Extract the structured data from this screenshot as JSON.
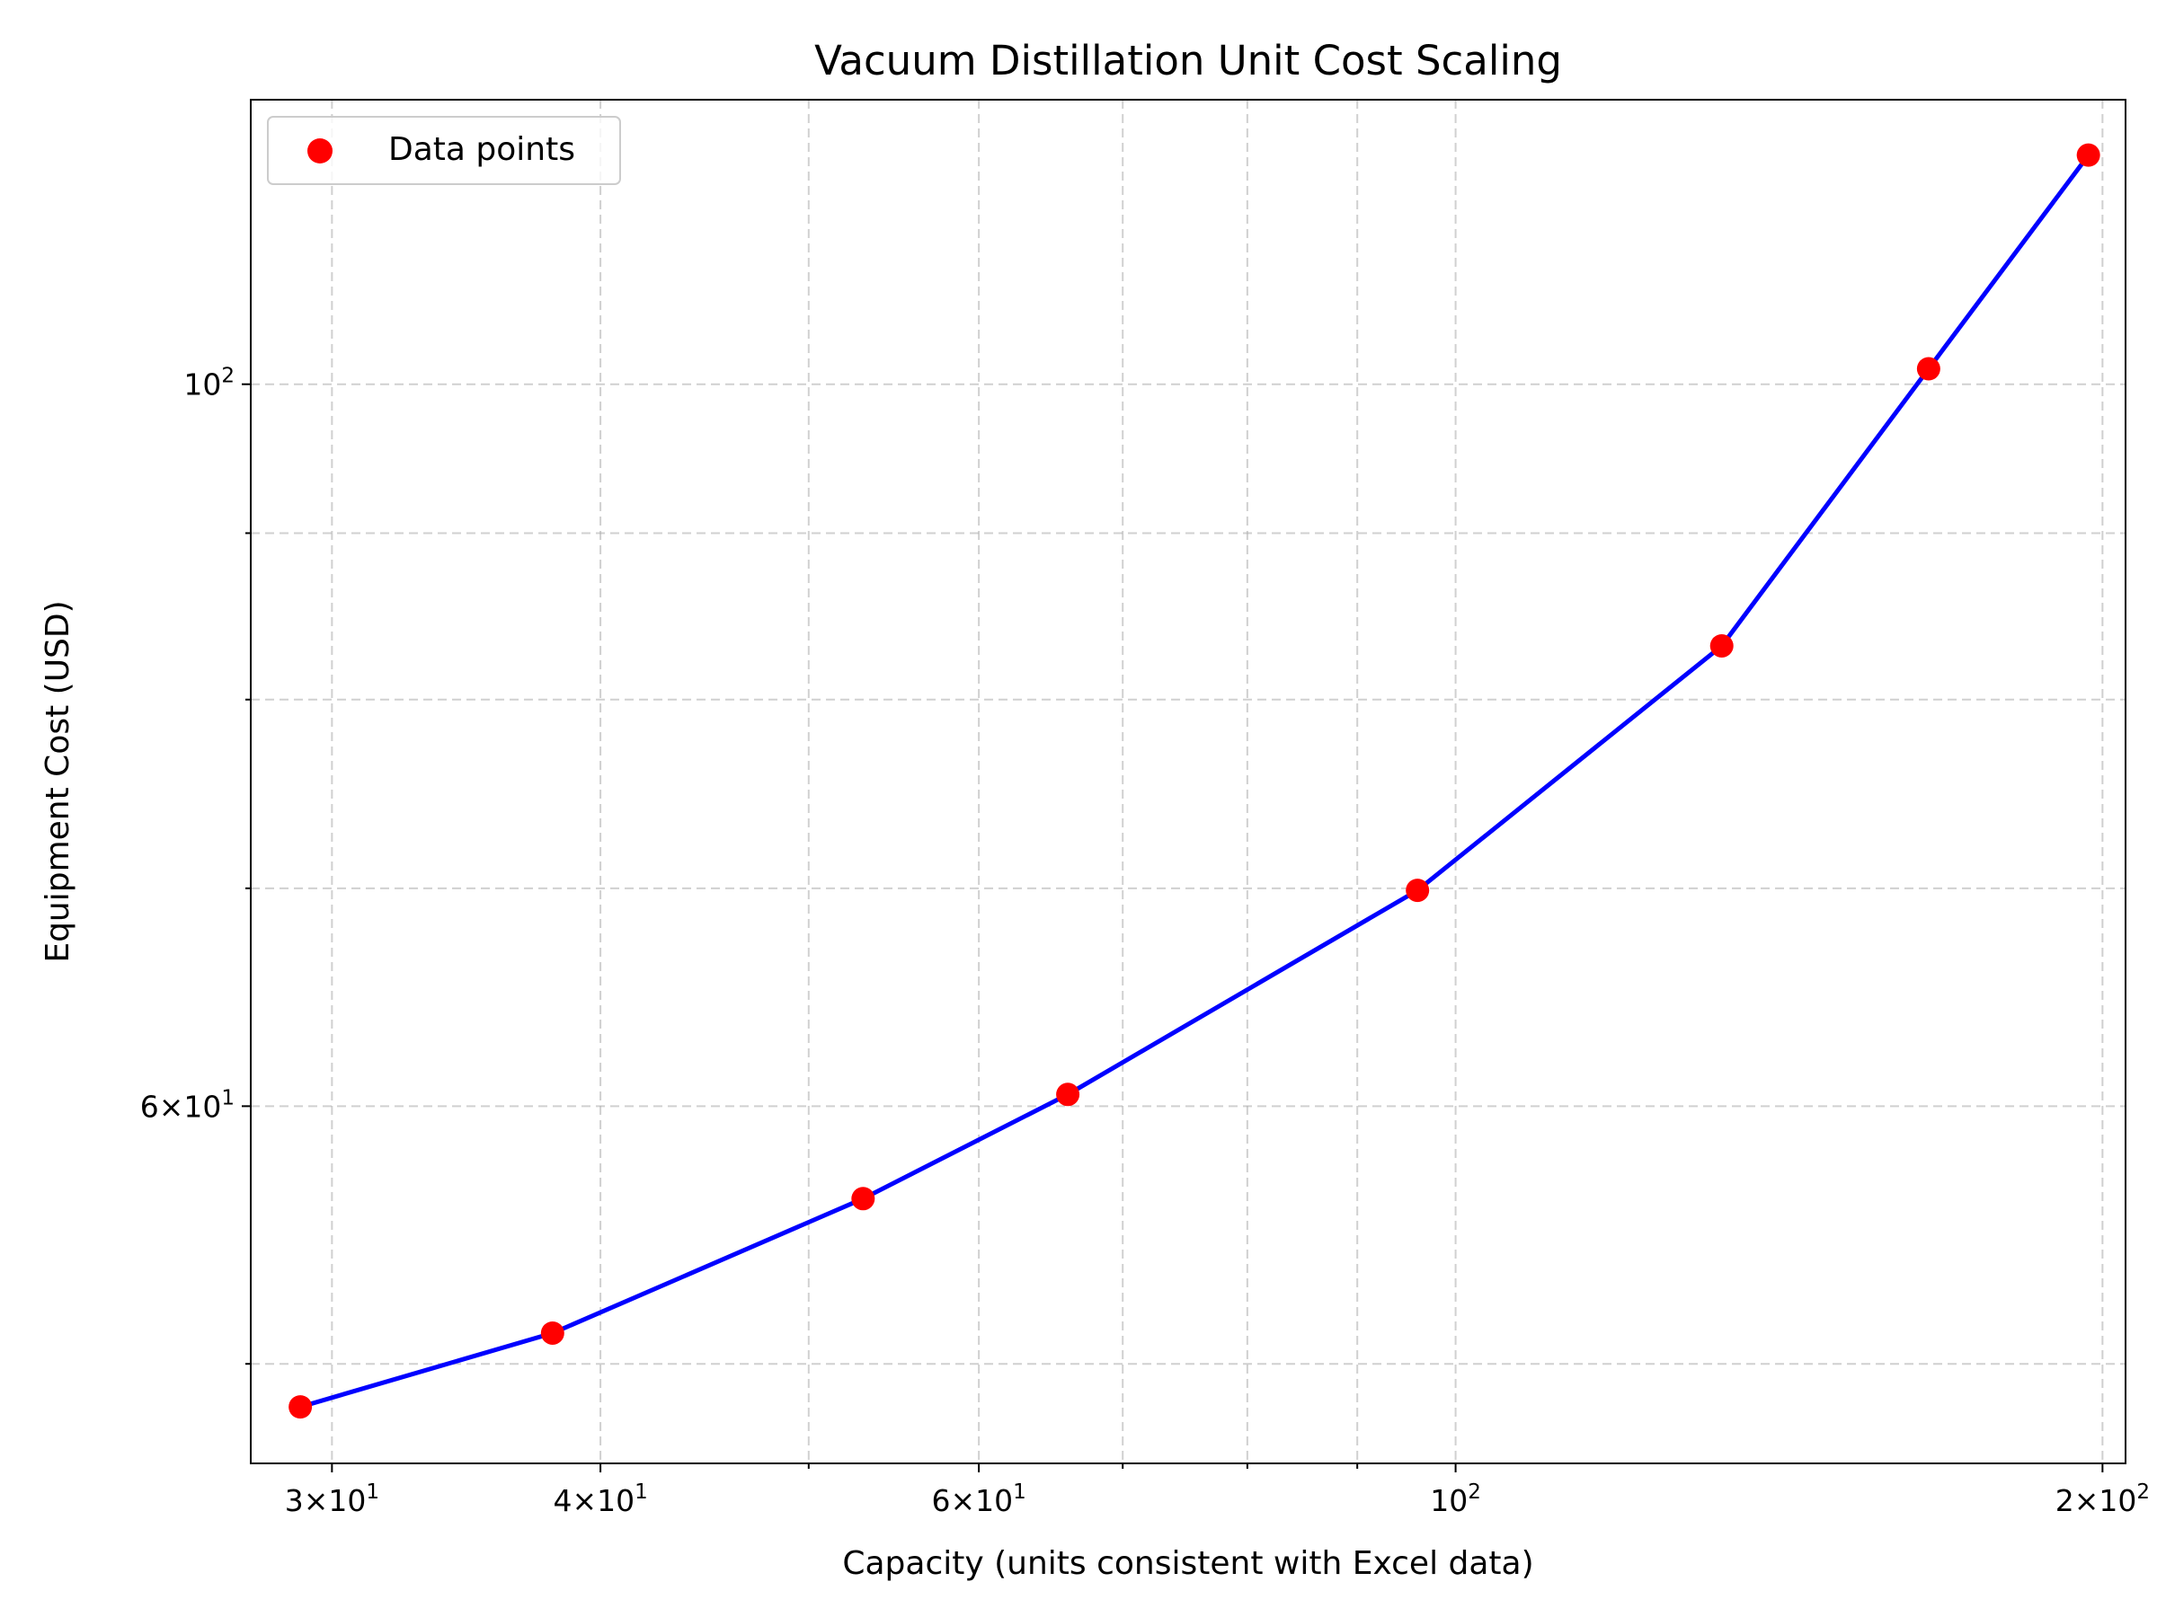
{
  "chart_data": {
    "type": "scatter",
    "title": "Vacuum Distillation Unit Cost Scaling",
    "xlabel": "Capacity (units consistent with Excel data)",
    "ylabel": "Equipment Cost (USD)",
    "xscale": "log",
    "yscale": "log",
    "xlim": [
      27.5,
      205
    ],
    "ylim": [
      46.6,
      122.3
    ],
    "grid": true,
    "legend_position": "top-left",
    "x_ticks": [
      {
        "value": 30,
        "mantissa": "3",
        "exp": "1"
      },
      {
        "value": 40,
        "mantissa": "4",
        "exp": "1"
      },
      {
        "value": 60,
        "mantissa": "6",
        "exp": "1"
      },
      {
        "value": 100,
        "mantissa": "",
        "exp": "2"
      },
      {
        "value": 200,
        "mantissa": "2",
        "exp": "2"
      }
    ],
    "x_minor_ticks": [
      50,
      70,
      80,
      90
    ],
    "y_ticks": [
      {
        "value": 60,
        "mantissa": "6",
        "exp": "1"
      },
      {
        "value": 100,
        "mantissa": "",
        "exp": "2"
      }
    ],
    "y_minor_ticks": [
      50,
      70,
      80,
      90
    ],
    "series": [
      {
        "name": "Data points",
        "kind": "scatter",
        "color": "#ff0000",
        "x": [
          29,
          38,
          53,
          66,
          96,
          133,
          166,
          197
        ],
        "y": [
          48.5,
          51.1,
          56.2,
          60.5,
          69.9,
          83.1,
          101.1,
          117.6
        ]
      },
      {
        "kind": "line",
        "color": "#0000ff",
        "x": [
          29,
          38,
          53,
          66,
          96,
          133,
          166,
          197
        ],
        "y": [
          48.5,
          51.1,
          56.2,
          60.5,
          69.9,
          83.1,
          101.1,
          117.6
        ]
      }
    ]
  }
}
